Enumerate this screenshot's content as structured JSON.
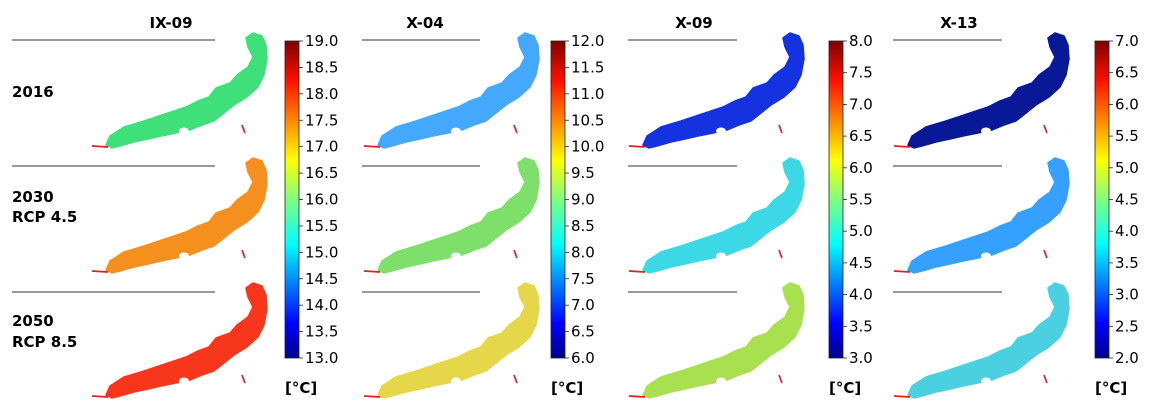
{
  "figure": {
    "columns": [
      {
        "title": "IX-09",
        "colorbar": {
          "ticks": [
            "19.0",
            "18.5",
            "18.0",
            "17.5",
            "17.0",
            "16.5",
            "16.0",
            "15.5",
            "15.0",
            "14.5",
            "14.0",
            "13.5",
            "13.0"
          ],
          "min": 13.0,
          "max": 19.0,
          "unit": "[°C]"
        }
      },
      {
        "title": "X-04",
        "colorbar": {
          "ticks": [
            "12.0",
            "11.5",
            "11.0",
            "10.5",
            "10.0",
            "9.5",
            "9.0",
            "8.5",
            "8.0",
            "7.5",
            "7.0",
            "6.5",
            "6.0"
          ],
          "min": 6.0,
          "max": 12.0,
          "unit": "[°C]"
        }
      },
      {
        "title": "X-09",
        "colorbar": {
          "ticks": [
            "8.0",
            "7.5",
            "7.0",
            "6.5",
            "6.0",
            "5.5",
            "5.0",
            "4.5",
            "4.0",
            "3.5",
            "3.0"
          ],
          "min": 3.0,
          "max": 8.0,
          "unit": "[°C]"
        }
      },
      {
        "title": "X-13",
        "colorbar": {
          "ticks": [
            "7.0",
            "6.5",
            "6.0",
            "5.5",
            "5.0",
            "4.5",
            "4.0",
            "3.5",
            "3.0",
            "2.5",
            "2.0"
          ],
          "min": 2.0,
          "max": 7.0,
          "unit": "[°C]"
        }
      }
    ],
    "rows": [
      {
        "label_lines": [
          "2016"
        ]
      },
      {
        "label_lines": [
          "2030",
          "RCP 4.5"
        ]
      },
      {
        "label_lines": [
          "2050",
          "RCP 8.5"
        ]
      }
    ],
    "map_fill_colors": [
      [
        "#3fe07a",
        "#45a8ff",
        "#1432e0",
        "#081896"
      ],
      [
        "#f5901e",
        "#7ee06a",
        "#3cd8e6",
        "#35a0ff"
      ],
      [
        "#f7361c",
        "#e6d64a",
        "#a8e050",
        "#4ad0e0"
      ]
    ]
  }
}
